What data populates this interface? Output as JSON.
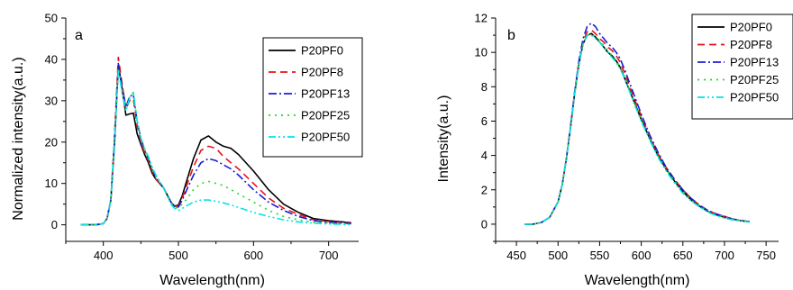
{
  "chart_data": [
    {
      "type": "line",
      "panel_label": "a",
      "xlabel": "Wavelength(nm)",
      "ylabel": "Normalized intensity(a.u.)",
      "xlim": [
        350,
        740
      ],
      "ylim": [
        -4,
        50
      ],
      "xticks": [
        400,
        500,
        600,
        700
      ],
      "yticks": [
        0,
        10,
        20,
        30,
        40,
        50
      ],
      "legend_position": "top-right",
      "series": [
        {
          "name": "P20PF0",
          "color": "#000000",
          "dash": "solid",
          "x": [
            370,
            390,
            400,
            405,
            410,
            415,
            420,
            425,
            430,
            435,
            440,
            445,
            450,
            455,
            460,
            465,
            470,
            480,
            490,
            495,
            500,
            505,
            510,
            520,
            530,
            540,
            550,
            560,
            570,
            580,
            600,
            620,
            640,
            660,
            680,
            700,
            730
          ],
          "y": [
            0,
            0,
            0.3,
            1.5,
            6,
            20,
            38.5,
            33,
            26.5,
            26.8,
            27,
            22,
            19.5,
            17,
            15,
            12.5,
            11,
            9,
            5.5,
            4.5,
            4.8,
            7,
            10,
            16,
            20.5,
            21.5,
            20,
            19,
            18.5,
            17,
            13,
            8.5,
            5,
            3,
            1.5,
            1,
            0.5
          ]
        },
        {
          "name": "P20PF8",
          "color": "#e8121a",
          "dash": "8,5",
          "x": [
            370,
            390,
            400,
            405,
            410,
            415,
            420,
            425,
            430,
            435,
            440,
            445,
            450,
            455,
            460,
            465,
            470,
            480,
            490,
            495,
            500,
            505,
            510,
            520,
            530,
            540,
            550,
            560,
            570,
            580,
            600,
            620,
            640,
            660,
            680,
            700,
            730
          ],
          "y": [
            0,
            0,
            0.3,
            1.5,
            6,
            22,
            40.5,
            34,
            28,
            30,
            30.5,
            24,
            20,
            17.5,
            15.5,
            13,
            11,
            9,
            5.5,
            4.5,
            4.5,
            6.5,
            9,
            14,
            18,
            19,
            18.5,
            16.5,
            15,
            13.5,
            10,
            6.5,
            4,
            2.5,
            1.2,
            0.8,
            0.4
          ]
        },
        {
          "name": "P20PF13",
          "color": "#1c1cd6",
          "dash": "9,3,2,3",
          "x": [
            370,
            390,
            400,
            405,
            410,
            415,
            420,
            425,
            430,
            435,
            440,
            445,
            450,
            455,
            460,
            465,
            470,
            480,
            490,
            495,
            500,
            505,
            510,
            520,
            530,
            540,
            550,
            560,
            570,
            580,
            600,
            620,
            640,
            660,
            680,
            700,
            730
          ],
          "y": [
            0,
            0,
            0.3,
            1.5,
            6,
            21,
            39,
            33.5,
            28.5,
            31,
            31.5,
            25,
            21,
            18,
            16,
            13.5,
            11.5,
            9,
            5.5,
            4.5,
            4.3,
            6,
            8,
            12,
            15,
            16,
            15.5,
            14.5,
            13.5,
            12,
            8.5,
            5.5,
            3.5,
            2,
            1,
            0.6,
            0.3
          ]
        },
        {
          "name": "P20PF25",
          "color": "#22d922",
          "dash": "2,5",
          "x": [
            370,
            390,
            400,
            405,
            410,
            415,
            420,
            425,
            430,
            435,
            440,
            445,
            450,
            455,
            460,
            465,
            470,
            480,
            490,
            495,
            500,
            505,
            510,
            520,
            530,
            540,
            550,
            560,
            570,
            580,
            600,
            620,
            640,
            660,
            680,
            700,
            730
          ],
          "y": [
            0,
            0,
            0.3,
            1.5,
            6,
            21,
            38,
            32.5,
            28,
            31,
            32,
            25,
            21,
            18,
            16,
            13.5,
            11.5,
            9,
            5.5,
            4.3,
            4,
            5,
            6,
            8.5,
            10,
            10.5,
            10,
            9.5,
            8.5,
            7.5,
            5.5,
            3.5,
            2,
            1.2,
            0.6,
            0.4,
            0.2
          ]
        },
        {
          "name": "P20PF50",
          "color": "#00e5e5",
          "dash": "8,3,2,3,2,3",
          "x": [
            370,
            390,
            400,
            405,
            410,
            415,
            420,
            425,
            430,
            435,
            440,
            445,
            450,
            455,
            460,
            465,
            470,
            480,
            490,
            495,
            500,
            505,
            510,
            520,
            530,
            540,
            550,
            560,
            570,
            580,
            600,
            620,
            640,
            660,
            680,
            700,
            730
          ],
          "y": [
            0,
            0,
            0.3,
            1.5,
            6,
            21,
            37.5,
            32,
            27.5,
            30.5,
            32,
            25,
            21,
            18.5,
            16.5,
            14,
            12,
            9,
            5,
            4,
            3.5,
            4,
            4.5,
            5.5,
            6,
            6,
            5.7,
            5.3,
            4.8,
            4.2,
            3,
            2,
            1.2,
            0.7,
            0.4,
            0.2,
            0.1
          ]
        }
      ]
    },
    {
      "type": "line",
      "panel_label": "b",
      "xlabel": "Wavelength(nm)",
      "ylabel": "Intensity(a.u.)",
      "xlim": [
        425,
        765
      ],
      "ylim": [
        -1,
        12
      ],
      "xticks": [
        450,
        500,
        550,
        600,
        650,
        700,
        750
      ],
      "yticks": [
        0,
        2,
        4,
        6,
        8,
        10,
        12
      ],
      "legend_position": "top-right",
      "series": [
        {
          "name": "P20PF0",
          "color": "#000000",
          "dash": "solid",
          "x": [
            460,
            470,
            480,
            490,
            500,
            505,
            510,
            515,
            520,
            525,
            530,
            535,
            540,
            545,
            550,
            555,
            560,
            565,
            570,
            575,
            580,
            590,
            600,
            610,
            620,
            630,
            640,
            650,
            660,
            670,
            680,
            690,
            700,
            710,
            720,
            730
          ],
          "y": [
            0,
            0,
            0.1,
            0.4,
            1.3,
            2.3,
            3.8,
            5.6,
            7.6,
            9.3,
            10.5,
            11.0,
            11.1,
            10.9,
            10.6,
            10.3,
            10.0,
            9.8,
            9.5,
            9.1,
            8.5,
            7.3,
            6.1,
            5.0,
            4.0,
            3.2,
            2.5,
            1.9,
            1.4,
            1.05,
            0.75,
            0.55,
            0.4,
            0.3,
            0.2,
            0.15
          ]
        },
        {
          "name": "P20PF8",
          "color": "#e8121a",
          "dash": "8,5",
          "x": [
            460,
            470,
            480,
            490,
            500,
            505,
            510,
            515,
            520,
            525,
            530,
            535,
            540,
            545,
            550,
            555,
            560,
            565,
            570,
            575,
            580,
            590,
            600,
            610,
            620,
            630,
            640,
            650,
            660,
            670,
            680,
            690,
            700,
            710,
            720,
            730
          ],
          "y": [
            0,
            0,
            0.1,
            0.4,
            1.3,
            2.3,
            3.8,
            5.7,
            7.7,
            9.4,
            10.6,
            11.2,
            11.3,
            11.1,
            10.8,
            10.6,
            10.3,
            10.1,
            9.8,
            9.4,
            8.8,
            7.5,
            6.3,
            5.1,
            4.1,
            3.3,
            2.6,
            2.0,
            1.5,
            1.1,
            0.8,
            0.6,
            0.45,
            0.3,
            0.2,
            0.15
          ]
        },
        {
          "name": "P20PF13",
          "color": "#1c1cd6",
          "dash": "9,3,2,3",
          "x": [
            460,
            470,
            480,
            490,
            500,
            505,
            510,
            515,
            520,
            525,
            530,
            535,
            540,
            545,
            550,
            555,
            560,
            565,
            570,
            575,
            580,
            590,
            600,
            610,
            620,
            630,
            640,
            650,
            660,
            670,
            680,
            690,
            700,
            710,
            720,
            730
          ],
          "y": [
            0,
            0,
            0.1,
            0.4,
            1.3,
            2.3,
            3.8,
            5.7,
            7.7,
            9.5,
            10.8,
            11.5,
            11.7,
            11.5,
            11.1,
            10.8,
            10.5,
            10.3,
            10.0,
            9.6,
            9.0,
            7.7,
            6.4,
            5.2,
            4.2,
            3.3,
            2.6,
            2.0,
            1.5,
            1.1,
            0.8,
            0.6,
            0.45,
            0.3,
            0.2,
            0.15
          ]
        },
        {
          "name": "P20PF25",
          "color": "#22d922",
          "dash": "2,5",
          "x": [
            460,
            470,
            480,
            490,
            500,
            505,
            510,
            515,
            520,
            525,
            530,
            535,
            540,
            545,
            550,
            555,
            560,
            565,
            570,
            575,
            580,
            590,
            600,
            610,
            620,
            630,
            640,
            650,
            660,
            670,
            680,
            690,
            700,
            710,
            720,
            730
          ],
          "y": [
            0,
            0,
            0.1,
            0.4,
            1.3,
            2.3,
            3.8,
            5.6,
            7.6,
            9.3,
            10.5,
            11.0,
            11.1,
            10.9,
            10.7,
            10.4,
            10.1,
            9.8,
            9.5,
            9.1,
            8.6,
            7.3,
            6.1,
            5.0,
            4.0,
            3.2,
            2.5,
            1.9,
            1.4,
            1.05,
            0.75,
            0.55,
            0.4,
            0.3,
            0.2,
            0.15
          ]
        },
        {
          "name": "P20PF50",
          "color": "#00e5e5",
          "dash": "8,3,2,3,2,3",
          "x": [
            460,
            470,
            480,
            490,
            500,
            505,
            510,
            515,
            520,
            525,
            530,
            535,
            540,
            545,
            550,
            555,
            560,
            565,
            570,
            575,
            580,
            590,
            600,
            610,
            620,
            630,
            640,
            650,
            660,
            670,
            680,
            690,
            700,
            710,
            720,
            730
          ],
          "y": [
            0,
            0,
            0.1,
            0.4,
            1.3,
            2.3,
            3.8,
            5.6,
            7.6,
            9.3,
            10.5,
            11.0,
            11.0,
            10.8,
            10.6,
            10.3,
            10.0,
            9.7,
            9.4,
            9.0,
            8.5,
            7.2,
            6.0,
            4.9,
            3.9,
            3.1,
            2.4,
            1.8,
            1.35,
            1.0,
            0.7,
            0.5,
            0.35,
            0.25,
            0.18,
            0.12
          ]
        }
      ]
    }
  ]
}
